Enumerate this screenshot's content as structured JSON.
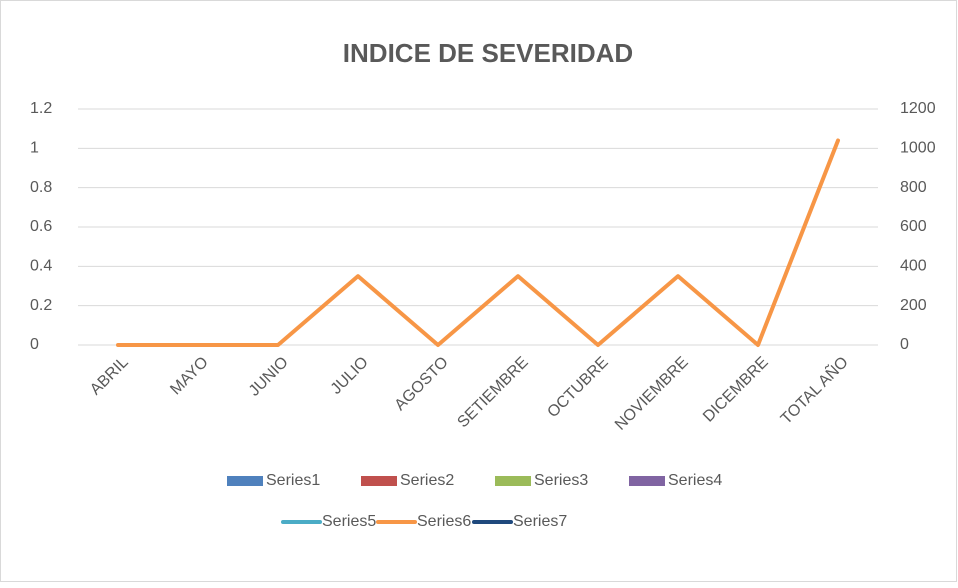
{
  "chart_data": {
    "type": "combo",
    "title": "INDICE DE SEVERIDAD",
    "categories": [
      "ABRIL",
      "MAYO",
      "JUNIO",
      "JULIO",
      "AGOSTO",
      "SETIEMBRE",
      "OCTUBRE",
      "NOVIEMBRE",
      "DICEMBRE",
      "TOTAL AÑO"
    ],
    "series": [
      {
        "name": "Series1",
        "kind": "bar",
        "color": "#4f81bd",
        "values": [
          null,
          null,
          null,
          null,
          null,
          null,
          null,
          null,
          null,
          null
        ]
      },
      {
        "name": "Series2",
        "kind": "bar",
        "color": "#c0504d",
        "values": [
          null,
          null,
          null,
          null,
          null,
          null,
          null,
          null,
          null,
          null
        ]
      },
      {
        "name": "Series3",
        "kind": "bar",
        "color": "#9bbb59",
        "values": [
          null,
          null,
          null,
          null,
          null,
          null,
          null,
          null,
          null,
          null
        ]
      },
      {
        "name": "Series4",
        "kind": "bar",
        "color": "#8064a2",
        "values": [
          null,
          null,
          null,
          null,
          null,
          null,
          null,
          null,
          null,
          null
        ]
      },
      {
        "name": "Series5",
        "kind": "line",
        "color": "#4bacc6",
        "values": [
          null,
          null,
          null,
          null,
          null,
          null,
          null,
          null,
          null,
          null
        ]
      },
      {
        "name": "Series6",
        "kind": "line",
        "axis": "y2",
        "color": "#f79646",
        "values": [
          0,
          0,
          0,
          350,
          0,
          350,
          0,
          350,
          0,
          1040
        ]
      },
      {
        "name": "Series7",
        "kind": "line",
        "color": "#1f497d",
        "values": [
          null,
          null,
          null,
          null,
          null,
          null,
          null,
          null,
          null,
          null
        ]
      }
    ],
    "ylim": [
      0,
      1.2
    ],
    "yticks": [
      0,
      0.2,
      0.4,
      0.6,
      0.8,
      1,
      1.2
    ],
    "y2lim": [
      0,
      1200
    ],
    "y2ticks": [
      0,
      200,
      400,
      600,
      800,
      1000,
      1200
    ],
    "grid": true,
    "legend": "bottom"
  }
}
